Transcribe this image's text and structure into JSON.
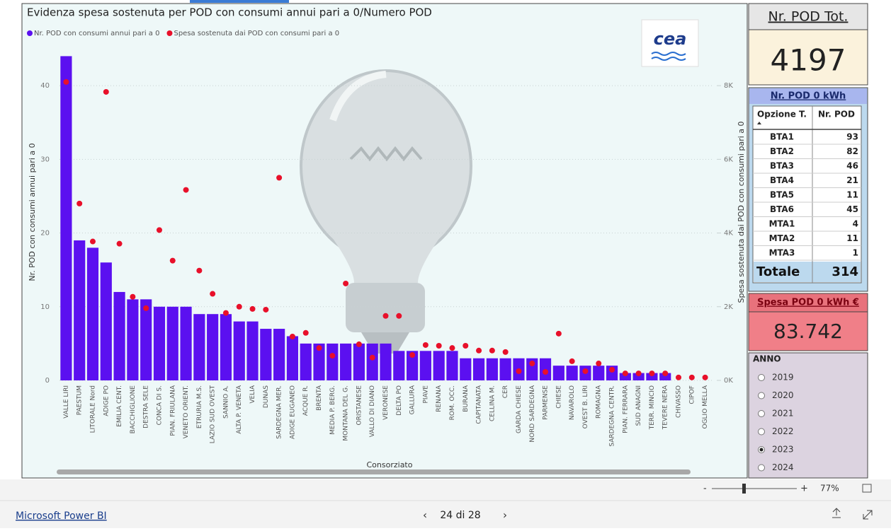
{
  "chart_data": {
    "type": "bar_scatter",
    "title": "Evidenza spesa sostenuta per POD con consumi annui pari a 0/Numero POD",
    "x_label": "Consorziato",
    "y_label": "Nr. POD con consumi annui pari a 0",
    "y2_label": "Spesa sostenuta dai POD con consumi pari a 0",
    "categories": [
      "VALLE LIRI",
      "PAESTUM",
      "LITORALE Nord",
      "ADIGE PO",
      "EMILIA CENT.",
      "BACCHIGLIONE",
      "DESTRA SELE",
      "CONCA DI S.",
      "PIAN. FRIULANA",
      "VENETO ORIENT.",
      "ETRURIA M.S.",
      "LAZIO SUD OVEST",
      "SANNIO A.",
      "ALTA P. VENETA",
      "VELIA",
      "DUNAS",
      "SARDEGNA MER.",
      "ADIGE EUGANEO",
      "ACQUE R.",
      "BRENTA",
      "MEDIA P. BERG.",
      "MONTANA DEL G.",
      "ORISTANESE",
      "VALLO DI DIANO",
      "VERONESE",
      "DELTA PO",
      "GALLURA",
      "PIAVE",
      "RENANA",
      "ROM. OCC.",
      "BURANA",
      "CAPITANATA",
      "CELLINA M.",
      "CER",
      "GARDA CHIESE",
      "NORD SARDEGNA",
      "PARMENSE",
      "CHIESE",
      "NAVAROLO",
      "OVEST B. LIRI",
      "ROMAGNA",
      "SARDEGNA CENTR.",
      "PIAN. FERRARA",
      "SUD ANAGNI",
      "TERR. MINCIO",
      "TEVERE NERA",
      "CHIVASSO",
      "CIPOF",
      "OGLIO MELLA"
    ],
    "series": [
      {
        "name": "Nr. POD con consumi annui pari a 0",
        "color": "#5b10f0",
        "kind": "bar",
        "values": [
          44,
          19,
          18,
          16,
          12,
          11,
          11,
          10,
          10,
          10,
          9,
          9,
          9,
          8,
          8,
          7,
          7,
          6,
          5,
          5,
          5,
          5,
          5,
          5,
          5,
          4,
          4,
          4,
          4,
          4,
          3,
          3,
          3,
          3,
          3,
          3,
          3,
          2,
          2,
          2,
          2,
          2,
          1,
          1,
          1,
          1,
          0,
          0,
          0
        ]
      },
      {
        "name": "Spesa sostenuta dai POD con consumi pari a 0",
        "color": "#e8102a",
        "kind": "scatter",
        "axis": "y2",
        "values": [
          8100,
          4800,
          3770,
          7830,
          3710,
          2270,
          1960,
          4080,
          3250,
          5170,
          2980,
          2350,
          1830,
          2000,
          1940,
          1920,
          5500,
          1190,
          1290,
          880,
          670,
          2630,
          980,
          620,
          1750,
          1750,
          690,
          960,
          940,
          880,
          940,
          810,
          810,
          770,
          250,
          460,
          230,
          1270,
          520,
          250,
          460,
          290,
          190,
          190,
          190,
          190,
          80,
          80,
          80
        ]
      }
    ],
    "ylim": [
      0,
      45
    ],
    "yticks": [
      0,
      10,
      20,
      30,
      40
    ],
    "y2lim": [
      0,
      9000
    ],
    "y2ticks": [
      {
        "value": 0,
        "label": "0K"
      },
      {
        "value": 2000,
        "label": "2K"
      },
      {
        "value": 4000,
        "label": "4K"
      },
      {
        "value": 6000,
        "label": "6K"
      },
      {
        "value": 8000,
        "label": "8K"
      }
    ],
    "grid": true,
    "legend": "top-left"
  },
  "logo": "cea",
  "kpi_total": {
    "title": "Nr. POD Tot.",
    "value": "4197"
  },
  "pod_table": {
    "title": "Nr. POD 0 kWh",
    "headers": [
      "Opzione T.",
      "Nr. POD"
    ],
    "rows": [
      [
        "BTA1",
        "93"
      ],
      [
        "BTA2",
        "82"
      ],
      [
        "BTA3",
        "46"
      ],
      [
        "BTA4",
        "21"
      ],
      [
        "BTA5",
        "11"
      ],
      [
        "BTA6",
        "45"
      ],
      [
        "MTA1",
        "4"
      ],
      [
        "MTA2",
        "11"
      ],
      [
        "MTA3",
        "1"
      ]
    ],
    "total": [
      "Totale",
      "314"
    ]
  },
  "kpi_spesa": {
    "title": "Spesa POD 0 kWh €",
    "value": "83.742"
  },
  "anno": {
    "title": "ANNO",
    "options": [
      "2019",
      "2020",
      "2021",
      "2022",
      "2023",
      "2024"
    ],
    "selected": 4
  },
  "footer": {
    "zoom": "77%",
    "minus": "-",
    "plus": "+",
    "brand": "Microsoft Power BI",
    "page": "24 di 28"
  }
}
